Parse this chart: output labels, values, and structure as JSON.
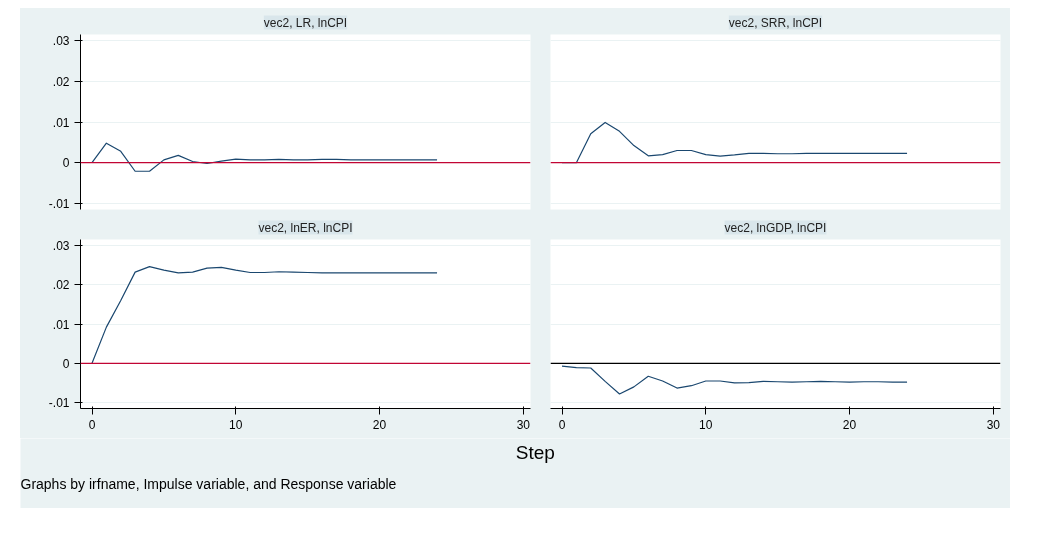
{
  "chart_data": [
    {
      "type": "line",
      "title": "vec2, LR, lnCPI",
      "x": [
        0,
        1,
        2,
        3,
        4,
        5,
        6,
        7,
        8,
        9,
        10,
        11,
        12,
        13,
        14,
        15,
        16,
        17,
        18,
        19,
        20,
        21,
        22,
        23,
        24
      ],
      "series": [
        {
          "color": "#1a476f",
          "values": [
            0,
            0.0048,
            0.0028,
            -0.0021,
            -0.0021,
            0.0007,
            0.0018,
            0.0003,
            -0.0002,
            0.0004,
            0.0009,
            0.0007,
            0.0007,
            0.0008,
            0.0007,
            0.0007,
            0.0008,
            0.0008,
            0.0007,
            0.0007,
            0.0007,
            0.0007,
            0.0007,
            0.0007,
            0.0007
          ]
        }
      ],
      "xlim": [
        -0.8,
        30.5
      ],
      "ylim": [
        -0.0115,
        0.0315
      ],
      "yticks": [
        {
          "value": -0.01,
          "label": "-.01"
        },
        {
          "value": 0,
          "label": "0"
        },
        {
          "value": 0.01,
          "label": ".01"
        },
        {
          "value": 0.02,
          "label": ".02"
        },
        {
          "value": 0.03,
          "label": ".03"
        }
      ],
      "tick_labels": "y",
      "grid": "y",
      "ref_lines": [
        {
          "axis": "y",
          "value": 0,
          "color": "#c10534"
        }
      ]
    },
    {
      "type": "line",
      "title": "vec2, SRR, lnCPI",
      "x": [
        0,
        1,
        2,
        3,
        4,
        5,
        6,
        7,
        8,
        9,
        10,
        11,
        12,
        13,
        14,
        15,
        16,
        17,
        18,
        19,
        20,
        21,
        22,
        23,
        24
      ],
      "series": [
        {
          "color": "#1a476f",
          "values": [
            0,
            0,
            0.0071,
            0.0099,
            0.0077,
            0.0042,
            0.0017,
            0.002,
            0.003,
            0.003,
            0.002,
            0.0016,
            0.0019,
            0.0023,
            0.0023,
            0.0022,
            0.0022,
            0.0023,
            0.0023,
            0.0023,
            0.0023,
            0.0023,
            0.0023,
            0.0023,
            0.0023
          ]
        }
      ],
      "xlim": [
        -0.8,
        30.5
      ],
      "ylim": [
        -0.0115,
        0.0315
      ],
      "yticks": [
        {
          "value": -0.01,
          "label": null
        },
        {
          "value": 0,
          "label": null
        },
        {
          "value": 0.01,
          "label": null
        },
        {
          "value": 0.02,
          "label": null
        },
        {
          "value": 0.03,
          "label": null
        }
      ],
      "tick_labels": false,
      "grid": "y",
      "ref_lines": [
        {
          "axis": "y",
          "value": 0,
          "color": "#c10534"
        }
      ]
    },
    {
      "type": "line",
      "title": "vec2, lnER, lnCPI",
      "x": [
        0,
        1,
        2,
        3,
        4,
        5,
        6,
        7,
        8,
        9,
        10,
        11,
        12,
        13,
        14,
        15,
        16,
        17,
        18,
        19,
        20,
        21,
        22,
        23,
        24
      ],
      "series": [
        {
          "color": "#1a476f",
          "values": [
            0,
            0.0092,
            0.016,
            0.0232,
            0.0246,
            0.0237,
            0.023,
            0.0232,
            0.0242,
            0.0244,
            0.0237,
            0.0231,
            0.0231,
            0.0233,
            0.0232,
            0.0231,
            0.023,
            0.023,
            0.023,
            0.023,
            0.023,
            0.023,
            0.023,
            0.023,
            0.023
          ]
        }
      ],
      "xlim": [
        -0.8,
        30.5
      ],
      "ylim": [
        -0.0115,
        0.0315
      ],
      "xticks": [
        0,
        10,
        20,
        30
      ],
      "yticks": [
        {
          "value": -0.01,
          "label": "-.01"
        },
        {
          "value": 0,
          "label": "0"
        },
        {
          "value": 0.01,
          "label": ".01"
        },
        {
          "value": 0.02,
          "label": ".02"
        },
        {
          "value": 0.03,
          "label": ".03"
        }
      ],
      "grid": "y",
      "ref_lines": [
        {
          "axis": "y",
          "value": 0,
          "color": "#c10534"
        }
      ]
    },
    {
      "type": "line",
      "title": "vec2, lnGDP, lnCPI",
      "x": [
        0,
        1,
        2,
        3,
        4,
        5,
        6,
        7,
        8,
        9,
        10,
        11,
        12,
        13,
        14,
        15,
        16,
        17,
        18,
        19,
        20,
        21,
        22,
        23,
        24
      ],
      "series": [
        {
          "color": "#1a476f",
          "values": [
            -0.0007,
            -0.0011,
            -0.0012,
            -0.0046,
            -0.0078,
            -0.006,
            -0.0033,
            -0.0045,
            -0.0063,
            -0.0057,
            -0.0045,
            -0.0045,
            -0.005,
            -0.0049,
            -0.0046,
            -0.0047,
            -0.0048,
            -0.0047,
            -0.0046,
            -0.0047,
            -0.0048,
            -0.0047,
            -0.0047,
            -0.0048,
            -0.0048
          ]
        }
      ],
      "xlim": [
        -0.8,
        30.5
      ],
      "ylim": [
        -0.0115,
        0.0315
      ],
      "xticks": [
        0,
        10,
        20,
        30
      ],
      "yticks": [
        {
          "value": -0.01,
          "label": null
        },
        {
          "value": 0,
          "label": null
        },
        {
          "value": 0.01,
          "label": null
        },
        {
          "value": 0.02,
          "label": null
        },
        {
          "value": 0.03,
          "label": null
        }
      ],
      "tick_labels": "x",
      "grid": "y",
      "ref_lines": [
        {
          "axis": "y",
          "value": 0,
          "color": "#000000"
        }
      ],
      "xlabel": "Step",
      "annotations": [
        "Graphs by irfname, Impulse variable, and Response variable"
      ]
    }
  ]
}
